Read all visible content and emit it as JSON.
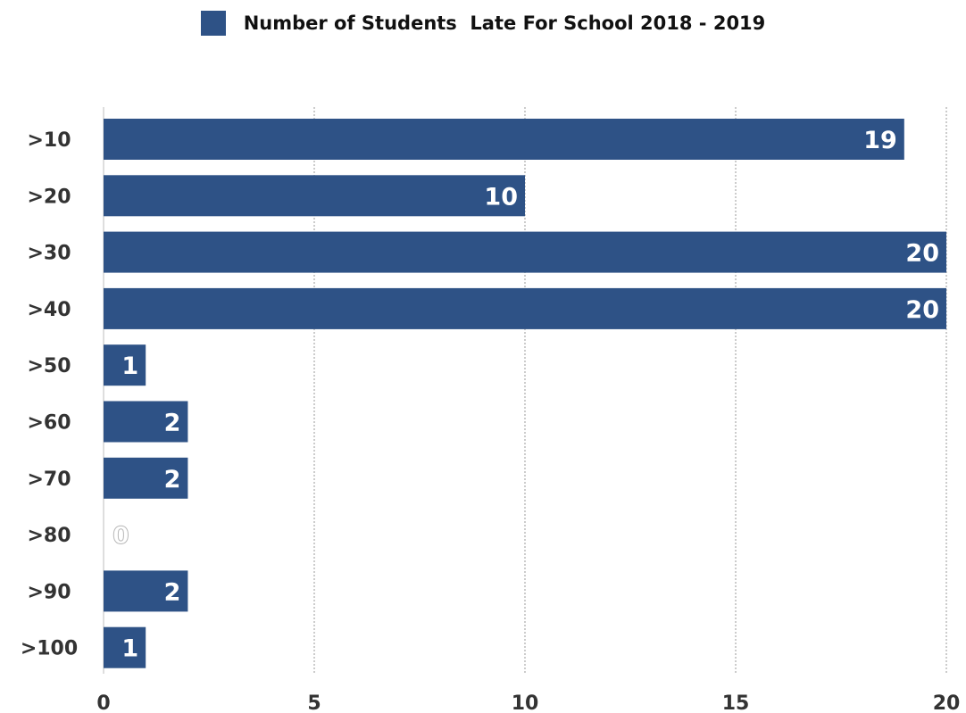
{
  "chart_data": {
    "type": "bar",
    "orientation": "horizontal",
    "categories": [
      ">10",
      ">20",
      ">30",
      ">40",
      ">50",
      ">60",
      ">70",
      ">80",
      ">90",
      ">100"
    ],
    "series": [
      {
        "name": "Number of Students  Late For School 2018 - 2019",
        "values": [
          19,
          10,
          20,
          20,
          1,
          2,
          2,
          0,
          2,
          1
        ]
      }
    ],
    "xlim": [
      0,
      20
    ],
    "x_ticks": [
      0,
      5,
      10,
      15,
      20
    ],
    "grid": "vertical dotted",
    "legend_position": "top-center",
    "data_labels": true
  },
  "colors": {
    "bar": "#2e5286",
    "gridline": "#9a9a9a",
    "axis_text": "#333333",
    "data_label": "#ffffff"
  }
}
